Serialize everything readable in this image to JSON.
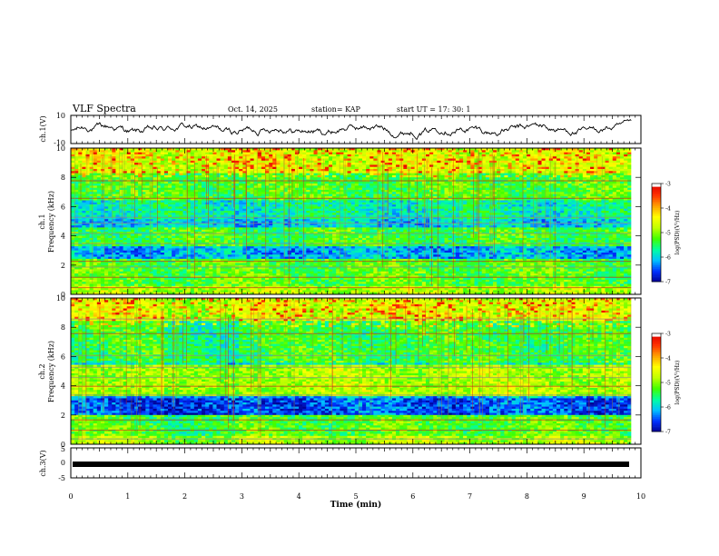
{
  "header": {
    "title": "VLF Spectra",
    "date": "Oct. 14, 2025",
    "station": "station= KAP",
    "start_ut": "start  UT  =   17: 30: 1"
  },
  "chart_data": [
    {
      "type": "line",
      "name": "ch1-waveform",
      "ylabel": "ch.1(V)",
      "ylim": [
        -10,
        10
      ],
      "yticks": [
        "10",
        "-10"
      ],
      "xlim": [
        0,
        10
      ],
      "series": [
        {
          "name": "ch.1",
          "color": "#000000",
          "note": "fluctuating amplitude trace, ~ -6 to +6 V"
        }
      ]
    },
    {
      "type": "heatmap",
      "name": "ch1-spectrogram",
      "ylabel": "ch.1\nFrequency (kHz)",
      "ylabel_ch": "ch.1",
      "ylabel_freq": "Frequency (kHz)",
      "ylim": [
        0,
        10
      ],
      "yticks": [
        "0",
        "2",
        "4",
        "6",
        "8",
        "10"
      ],
      "xlim": [
        0,
        9.83
      ]
    },
    {
      "type": "heatmap",
      "name": "ch2-spectrogram",
      "ylabel_ch": "ch.2",
      "ylabel_freq": "Frequency (kHz)",
      "ylim": [
        0,
        10
      ],
      "yticks": [
        "0",
        "2",
        "4",
        "6",
        "8",
        "10"
      ],
      "xlim": [
        0,
        9.83
      ]
    },
    {
      "type": "line",
      "name": "ch3-trace",
      "ylabel": "ch.3(V)",
      "ylim": [
        -5,
        5
      ],
      "yticks": [
        "5",
        "0",
        "-5"
      ],
      "xlim": [
        0,
        10
      ],
      "series": [
        {
          "name": "ch.3",
          "color": "#000000",
          "value_v": -0.5
        }
      ]
    }
  ],
  "x_axis": {
    "label": "Time  (min)",
    "ticks": [
      "0",
      "1",
      "2",
      "3",
      "4",
      "5",
      "6",
      "7",
      "8",
      "9",
      "10"
    ]
  },
  "colorbar": {
    "label": "log(PSD)(V²/Hz)",
    "range": [
      -7,
      -3
    ],
    "ticks": [
      "-3",
      "-4",
      "-5",
      "-6",
      "-7"
    ],
    "colors": [
      "#000090",
      "#0030ff",
      "#00c0ff",
      "#00ffa0",
      "#40ff00",
      "#c0ff00",
      "#ffff00",
      "#ffa000",
      "#ff3000",
      "#e00000",
      "#ffffff"
    ]
  }
}
